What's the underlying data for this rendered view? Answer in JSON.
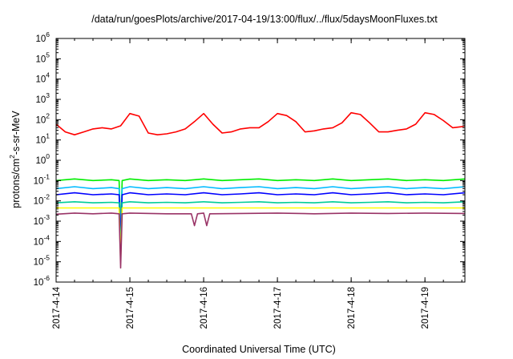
{
  "chart_data": {
    "type": "line",
    "title": "/data/run/goesPlots/archive/2017-04-19/13:00/flux/../flux/5daysMoonFluxes.txt",
    "xlabel": "Coordinated Universal Time (UTC)",
    "ylabel": {
      "prefix": "protons/cm",
      "sup": "2",
      "suffix": "-s-sr-MeV"
    },
    "y_scale": "log",
    "ylim": [
      1e-06,
      1000000.0
    ],
    "y_ticks": [
      {
        "value": 1000000.0,
        "base": "10",
        "exp": "6"
      },
      {
        "value": 100000.0,
        "base": "10",
        "exp": "5"
      },
      {
        "value": 10000.0,
        "base": "10",
        "exp": "4"
      },
      {
        "value": 1000.0,
        "base": "10",
        "exp": "3"
      },
      {
        "value": 100.0,
        "base": "10",
        "exp": "2"
      },
      {
        "value": 10.0,
        "base": "10",
        "exp": "1"
      },
      {
        "value": 1.0,
        "base": "10",
        "exp": "0"
      },
      {
        "value": 0.1,
        "base": "10",
        "exp": "-1"
      },
      {
        "value": 0.01,
        "base": "10",
        "exp": "-2"
      },
      {
        "value": 0.001,
        "base": "10",
        "exp": "-3"
      },
      {
        "value": 0.0001,
        "base": "10",
        "exp": "-4"
      },
      {
        "value": 1e-05,
        "base": "10",
        "exp": "-5"
      },
      {
        "value": 1e-06,
        "base": "10",
        "exp": "-6"
      }
    ],
    "xlim": [
      "2017-04-14T00:00",
      "2017-04-19T13:00"
    ],
    "x_ticks": [
      "2017-4-14",
      "2017-4-15",
      "2017-4-16",
      "2017-4-17",
      "2017-4-18",
      "2017-4-19"
    ],
    "x_tick_values": [
      "2017-04-14T00:00",
      "2017-04-15T00:00",
      "2017-04-16T00:00",
      "2017-04-17T00:00",
      "2017-04-18T00:00",
      "2017-04-19T00:00"
    ],
    "grid": false,
    "legend": "none",
    "series": [
      {
        "color": "#ff0000",
        "x": [
          "2017-04-14T00:00",
          "2017-04-14T03:00",
          "2017-04-14T06:00",
          "2017-04-14T09:00",
          "2017-04-14T12:00",
          "2017-04-14T15:00",
          "2017-04-14T18:00",
          "2017-04-14T21:00",
          "2017-04-15T00:00",
          "2017-04-15T03:00",
          "2017-04-15T06:00",
          "2017-04-15T09:00",
          "2017-04-15T12:00",
          "2017-04-15T15:00",
          "2017-04-15T18:00",
          "2017-04-15T21:00",
          "2017-04-16T00:00",
          "2017-04-16T03:00",
          "2017-04-16T06:00",
          "2017-04-16T09:00",
          "2017-04-16T12:00",
          "2017-04-16T15:00",
          "2017-04-16T18:00",
          "2017-04-16T21:00",
          "2017-04-17T00:00",
          "2017-04-17T03:00",
          "2017-04-17T06:00",
          "2017-04-17T09:00",
          "2017-04-17T12:00",
          "2017-04-17T15:00",
          "2017-04-17T18:00",
          "2017-04-17T21:00",
          "2017-04-18T00:00",
          "2017-04-18T03:00",
          "2017-04-18T06:00",
          "2017-04-18T09:00",
          "2017-04-18T12:00",
          "2017-04-18T15:00",
          "2017-04-18T18:00",
          "2017-04-18T21:00",
          "2017-04-19T00:00",
          "2017-04-19T03:00",
          "2017-04-19T06:00",
          "2017-04-19T09:00",
          "2017-04-19T12:00",
          "2017-04-19T13:00"
        ],
        "y": [
          60,
          25,
          18,
          25,
          35,
          40,
          35,
          50,
          200,
          150,
          22,
          18,
          20,
          25,
          35,
          80,
          200,
          60,
          22,
          25,
          35,
          40,
          40,
          80,
          200,
          160,
          80,
          25,
          28,
          35,
          40,
          70,
          220,
          180,
          70,
          25,
          25,
          30,
          35,
          60,
          220,
          180,
          90,
          40,
          45,
          50
        ]
      },
      {
        "color": "#00ee00",
        "x": [
          "2017-04-14T00:00",
          "2017-04-14T06:00",
          "2017-04-14T12:00",
          "2017-04-14T18:00",
          "2017-04-14T20:30",
          "2017-04-14T21:00",
          "2017-04-14T21:30",
          "2017-04-15T00:00",
          "2017-04-15T06:00",
          "2017-04-15T12:00",
          "2017-04-15T18:00",
          "2017-04-16T00:00",
          "2017-04-16T06:00",
          "2017-04-16T12:00",
          "2017-04-16T18:00",
          "2017-04-17T00:00",
          "2017-04-17T06:00",
          "2017-04-17T12:00",
          "2017-04-17T18:00",
          "2017-04-18T00:00",
          "2017-04-18T06:00",
          "2017-04-18T12:00",
          "2017-04-18T18:00",
          "2017-04-19T00:00",
          "2017-04-19T06:00",
          "2017-04-19T13:00"
        ],
        "y": [
          0.1,
          0.12,
          0.1,
          0.11,
          0.1,
          0.0003,
          0.1,
          0.12,
          0.1,
          0.11,
          0.1,
          0.12,
          0.1,
          0.11,
          0.12,
          0.1,
          0.11,
          0.1,
          0.12,
          0.1,
          0.11,
          0.12,
          0.1,
          0.11,
          0.1,
          0.12
        ]
      },
      {
        "color": "#00bbff",
        "x": [
          "2017-04-14T00:00",
          "2017-04-14T06:00",
          "2017-04-14T12:00",
          "2017-04-14T18:00",
          "2017-04-14T20:30",
          "2017-04-14T21:00",
          "2017-04-14T21:30",
          "2017-04-15T00:00",
          "2017-04-15T06:00",
          "2017-04-15T12:00",
          "2017-04-15T18:00",
          "2017-04-16T00:00",
          "2017-04-16T06:00",
          "2017-04-16T12:00",
          "2017-04-16T18:00",
          "2017-04-17T00:00",
          "2017-04-17T06:00",
          "2017-04-17T12:00",
          "2017-04-17T18:00",
          "2017-04-18T00:00",
          "2017-04-18T06:00",
          "2017-04-18T12:00",
          "2017-04-18T18:00",
          "2017-04-19T00:00",
          "2017-04-19T06:00",
          "2017-04-19T13:00"
        ],
        "y": [
          0.04,
          0.05,
          0.04,
          0.045,
          0.04,
          0.0002,
          0.04,
          0.05,
          0.04,
          0.045,
          0.04,
          0.05,
          0.04,
          0.045,
          0.05,
          0.04,
          0.045,
          0.04,
          0.05,
          0.04,
          0.045,
          0.05,
          0.04,
          0.045,
          0.04,
          0.05
        ]
      },
      {
        "color": "#0000ff",
        "x": [
          "2017-04-14T00:00",
          "2017-04-14T06:00",
          "2017-04-14T12:00",
          "2017-04-14T18:00",
          "2017-04-14T20:30",
          "2017-04-14T21:00",
          "2017-04-14T21:30",
          "2017-04-15T00:00",
          "2017-04-15T06:00",
          "2017-04-15T12:00",
          "2017-04-15T18:00",
          "2017-04-16T00:00",
          "2017-04-16T06:00",
          "2017-04-16T12:00",
          "2017-04-16T18:00",
          "2017-04-17T00:00",
          "2017-04-17T06:00",
          "2017-04-17T12:00",
          "2017-04-17T18:00",
          "2017-04-18T00:00",
          "2017-04-18T06:00",
          "2017-04-18T12:00",
          "2017-04-18T18:00",
          "2017-04-19T00:00",
          "2017-04-19T06:00",
          "2017-04-19T13:00"
        ],
        "y": [
          0.02,
          0.025,
          0.02,
          0.022,
          0.02,
          0.0001,
          0.02,
          0.025,
          0.02,
          0.022,
          0.02,
          0.025,
          0.02,
          0.022,
          0.025,
          0.02,
          0.022,
          0.02,
          0.025,
          0.02,
          0.022,
          0.025,
          0.02,
          0.022,
          0.02,
          0.025
        ]
      },
      {
        "color": "#00cc99",
        "x": [
          "2017-04-14T00:00",
          "2017-04-14T06:00",
          "2017-04-14T12:00",
          "2017-04-14T18:00",
          "2017-04-14T20:30",
          "2017-04-14T21:00",
          "2017-04-14T21:30",
          "2017-04-15T00:00",
          "2017-04-15T06:00",
          "2017-04-15T12:00",
          "2017-04-15T18:00",
          "2017-04-16T00:00",
          "2017-04-16T06:00",
          "2017-04-16T12:00",
          "2017-04-16T18:00",
          "2017-04-17T00:00",
          "2017-04-17T06:00",
          "2017-04-17T12:00",
          "2017-04-17T18:00",
          "2017-04-18T00:00",
          "2017-04-18T06:00",
          "2017-04-18T12:00",
          "2017-04-18T18:00",
          "2017-04-19T00:00",
          "2017-04-19T06:00",
          "2017-04-19T13:00"
        ],
        "y": [
          0.008,
          0.009,
          0.008,
          0.0085,
          0.008,
          3e-05,
          0.008,
          0.009,
          0.008,
          0.0085,
          0.008,
          0.009,
          0.008,
          0.0085,
          0.009,
          0.008,
          0.0085,
          0.008,
          0.009,
          0.008,
          0.0085,
          0.009,
          0.008,
          0.0085,
          0.008,
          0.009
        ]
      },
      {
        "color": "#ffff00",
        "x": [
          "2017-04-14T00:00",
          "2017-04-14T06:00",
          "2017-04-14T12:00",
          "2017-04-14T18:00",
          "2017-04-14T20:30",
          "2017-04-14T21:00",
          "2017-04-14T21:30",
          "2017-04-15T00:00",
          "2017-04-15T12:00",
          "2017-04-16T00:00",
          "2017-04-16T12:00",
          "2017-04-17T00:00",
          "2017-04-17T12:00",
          "2017-04-18T00:00",
          "2017-04-18T12:00",
          "2017-04-19T00:00",
          "2017-04-19T13:00"
        ],
        "y": [
          0.0045,
          0.0045,
          0.0045,
          0.0045,
          0.0045,
          1e-05,
          0.0045,
          0.0045,
          0.0045,
          0.0045,
          0.0045,
          0.0045,
          0.0045,
          0.0045,
          0.0045,
          0.0045,
          0.0045
        ]
      },
      {
        "color": "#993366",
        "x": [
          "2017-04-14T00:00",
          "2017-04-14T06:00",
          "2017-04-14T12:00",
          "2017-04-14T18:00",
          "2017-04-14T20:30",
          "2017-04-14T21:00",
          "2017-04-14T21:30",
          "2017-04-15T00:00",
          "2017-04-15T12:00",
          "2017-04-15T20:00",
          "2017-04-15T21:00",
          "2017-04-15T22:00",
          "2017-04-16T00:00",
          "2017-04-16T01:00",
          "2017-04-16T02:00",
          "2017-04-16T12:00",
          "2017-04-17T00:00",
          "2017-04-17T12:00",
          "2017-04-18T00:00",
          "2017-04-18T12:00",
          "2017-04-19T00:00",
          "2017-04-19T13:00"
        ],
        "y": [
          0.0022,
          0.0025,
          0.0023,
          0.0025,
          0.0023,
          5e-06,
          0.0023,
          0.0025,
          0.0023,
          0.0023,
          0.0006,
          0.0023,
          0.0025,
          0.0006,
          0.0023,
          0.0024,
          0.0025,
          0.0023,
          0.0025,
          0.0024,
          0.0025,
          0.0024
        ]
      }
    ]
  }
}
